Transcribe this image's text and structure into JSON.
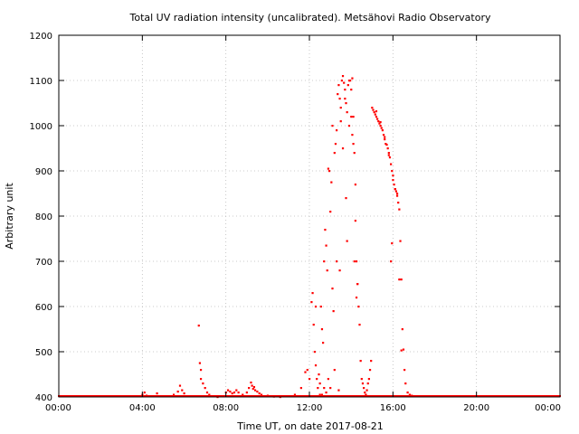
{
  "chart_data": {
    "type": "scatter",
    "title": "Total UV radiation intensity (uncalibrated). Metsähovi Radio Observatory",
    "xlabel": "Time UT, on date 2017-08-21",
    "ylabel": "Arbitrary unit",
    "xlim": [
      0,
      24
    ],
    "ylim": [
      400,
      1200
    ],
    "x_ticks": [
      0,
      4,
      8,
      12,
      16,
      20,
      24
    ],
    "x_tick_labels": [
      "00:00",
      "04:00",
      "08:00",
      "12:00",
      "16:00",
      "20:00",
      "00:00"
    ],
    "y_ticks": [
      400,
      500,
      600,
      700,
      800,
      900,
      1000,
      1100,
      1200
    ],
    "y_tick_labels": [
      "400",
      "500",
      "600",
      "700",
      "800",
      "900",
      "1000",
      "1100",
      "1200"
    ],
    "grid": true,
    "marker_color": "#ff0000",
    "series": [
      {
        "x": [
          4.0,
          4.1,
          4.2,
          4.7,
          5.5,
          5.7,
          5.8,
          5.9,
          6.0,
          6.1,
          6.7,
          6.75,
          6.8,
          6.8,
          6.9,
          7.0,
          7.1,
          7.2,
          7.4,
          7.6,
          8.0,
          8.1,
          8.2,
          8.3,
          8.4,
          8.5,
          8.6,
          8.8,
          9.0,
          9.1,
          9.2,
          9.25,
          9.3,
          9.35,
          9.4,
          9.5,
          9.6,
          9.7,
          9.8,
          10.0,
          10.3,
          10.6,
          11.0,
          11.3,
          11.6,
          11.8,
          11.9,
          12.0,
          12.1,
          12.15,
          12.2,
          12.25,
          12.3,
          12.35,
          12.4,
          12.45,
          12.5,
          12.55,
          12.6,
          12.65,
          12.7,
          12.75,
          12.8,
          12.85,
          12.9,
          12.95,
          13.0,
          13.05,
          13.1,
          13.15,
          13.2,
          13.25,
          13.3,
          13.35,
          13.4,
          13.45,
          13.5,
          13.55,
          13.6,
          13.65,
          13.7,
          13.75,
          13.8,
          13.85,
          13.9,
          13.95,
          14.0,
          14.05,
          14.1,
          14.15,
          14.2,
          14.25,
          14.3,
          14.35,
          14.4,
          14.45,
          14.5,
          14.55,
          14.6,
          14.65,
          14.7,
          14.75,
          14.8,
          14.85,
          14.9,
          14.95,
          15.0,
          15.05,
          15.1,
          15.15,
          15.2,
          15.25,
          15.3,
          15.35,
          15.4,
          15.45,
          15.5,
          15.55,
          15.6,
          15.65,
          15.7,
          15.75,
          15.8,
          15.85,
          15.9,
          15.95,
          16.0,
          16.05,
          16.1,
          16.15,
          16.2,
          16.25,
          16.3,
          16.35,
          16.4,
          16.45,
          16.5,
          16.55,
          16.6,
          16.7,
          16.8,
          16.9,
          17.0
        ],
        "y": [
          405,
          410,
          403,
          408,
          405,
          412,
          425,
          415,
          408,
          402,
          558,
          475,
          460,
          440,
          430,
          420,
          410,
          405,
          402,
          400,
          410,
          415,
          412,
          408,
          410,
          415,
          410,
          405,
          410,
          420,
          432,
          425,
          418,
          422,
          415,
          412,
          408,
          405,
          402,
          403,
          401,
          400,
          402,
          405,
          420,
          455,
          460,
          440,
          610,
          630,
          560,
          500,
          470,
          440,
          420,
          450,
          430,
          600,
          550,
          520,
          700,
          770,
          735,
          680,
          905,
          900,
          810,
          875,
          640,
          590,
          940,
          960,
          990,
          1070,
          1090,
          1060,
          1040,
          1100,
          1110,
          1095,
          1080,
          1050,
          1030,
          1090,
          1100,
          1100,
          1080,
          1105,
          1020,
          940,
          870,
          700,
          650,
          600,
          560,
          480,
          440,
          430,
          420,
          410,
          405,
          415,
          430,
          440,
          460,
          480,
          1040,
          1035,
          1030,
          1025,
          1020,
          1015,
          1010,
          1005,
          1000,
          995,
          990,
          980,
          970,
          960,
          958,
          950,
          940,
          930,
          915,
          900,
          890,
          870,
          860,
          855,
          845,
          830,
          815,
          745,
          660,
          550,
          505,
          460,
          430,
          410,
          405,
          403,
          402
        ]
      },
      {
        "x": [
          12.6,
          12.8,
          13.0,
          13.1,
          13.3,
          13.5,
          13.7,
          13.9,
          14.0,
          14.1,
          14.2,
          14.3,
          12.7,
          12.9,
          13.2,
          13.4,
          13.6,
          13.8,
          14.15,
          14.25,
          15.2,
          15.4,
          15.6,
          15.8,
          16.0,
          16.2,
          12.5,
          12.3,
          13.45,
          13.75,
          14.05,
          15.9,
          15.95,
          16.1,
          16.3,
          16.4
        ],
        "y": [
          405,
          410,
          420,
          1000,
          700,
          1010,
          1060,
          1000,
          1020,
          960,
          790,
          650,
          420,
          440,
          460,
          415,
          950,
          745,
          700,
          620,
          1032,
          1008,
          975,
          935,
          880,
          850,
          405,
          600,
          680,
          840,
          980,
          700,
          740,
          860,
          660,
          503
        ]
      }
    ]
  }
}
